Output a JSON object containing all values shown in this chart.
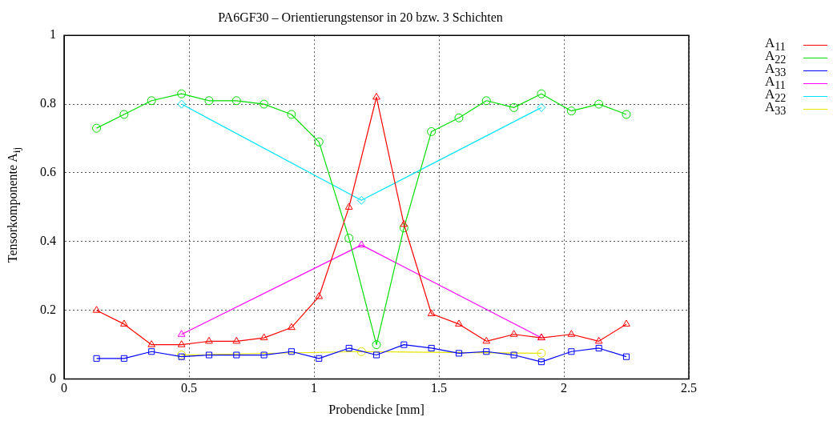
{
  "chart_data": {
    "type": "line",
    "title": "PA6GF30 – Orientierungstensor in 20 bzw. 3 Schichten",
    "xlabel": "Probendicke [mm]",
    "ylabel": "Tensorkomponente A$_{ij}$",
    "x": [
      0.13,
      0.24,
      0.35,
      0.47,
      0.58,
      0.69,
      0.8,
      0.91,
      1.02,
      1.14,
      1.25,
      1.36,
      1.47,
      1.58,
      1.69,
      1.8,
      1.91,
      2.03,
      2.14,
      2.25
    ],
    "xlim": [
      0,
      2.5
    ],
    "xticks": [
      0,
      0.5,
      1,
      1.5,
      2,
      2.5
    ],
    "ylim": [
      0,
      1
    ],
    "yticks": [
      0,
      0.2,
      0.4,
      0.6,
      0.8,
      1
    ],
    "grid": true,
    "legend": "top right",
    "series": [
      {
        "name": "A$_{11}$",
        "color": "#ff0000",
        "marker": "triangle",
        "values": [
          0.2,
          0.16,
          0.1,
          0.1,
          0.11,
          0.11,
          0.12,
          0.15,
          0.24,
          0.5,
          0.82,
          0.45,
          0.19,
          0.16,
          0.11,
          0.13,
          0.12,
          0.13,
          0.11,
          0.16
        ]
      },
      {
        "name": "A$_{22}$",
        "color": "#00dd00",
        "marker": "circle",
        "values": [
          0.73,
          0.77,
          0.81,
          0.83,
          0.81,
          0.81,
          0.8,
          0.77,
          0.69,
          0.41,
          0.1,
          0.44,
          0.72,
          0.76,
          0.81,
          0.79,
          0.83,
          0.78,
          0.8,
          0.77
        ]
      },
      {
        "name": "A$_{33}$",
        "color": "#0000ff",
        "marker": "square",
        "values": [
          0.06,
          0.06,
          0.08,
          0.065,
          0.07,
          0.07,
          0.07,
          0.08,
          0.06,
          0.09,
          0.07,
          0.1,
          0.09,
          0.075,
          0.08,
          0.07,
          0.05,
          0.08,
          0.09,
          0.065
        ]
      },
      {
        "name": "A$_{11}$",
        "color": "#ff00ff",
        "marker": "triangle",
        "x": [
          0.47,
          1.19,
          1.91
        ],
        "values": [
          0.13,
          0.39,
          0.12
        ]
      },
      {
        "name": "A$_{22}$",
        "color": "#00e5ff",
        "marker": "diamond",
        "x": [
          0.47,
          1.19,
          1.91
        ],
        "values": [
          0.8,
          0.52,
          0.79
        ]
      },
      {
        "name": "A$_{33}$",
        "color": "#e5e500",
        "marker": "circle",
        "x": [
          0.47,
          1.19,
          1.91
        ],
        "values": [
          0.07,
          0.08,
          0.075
        ]
      }
    ]
  }
}
